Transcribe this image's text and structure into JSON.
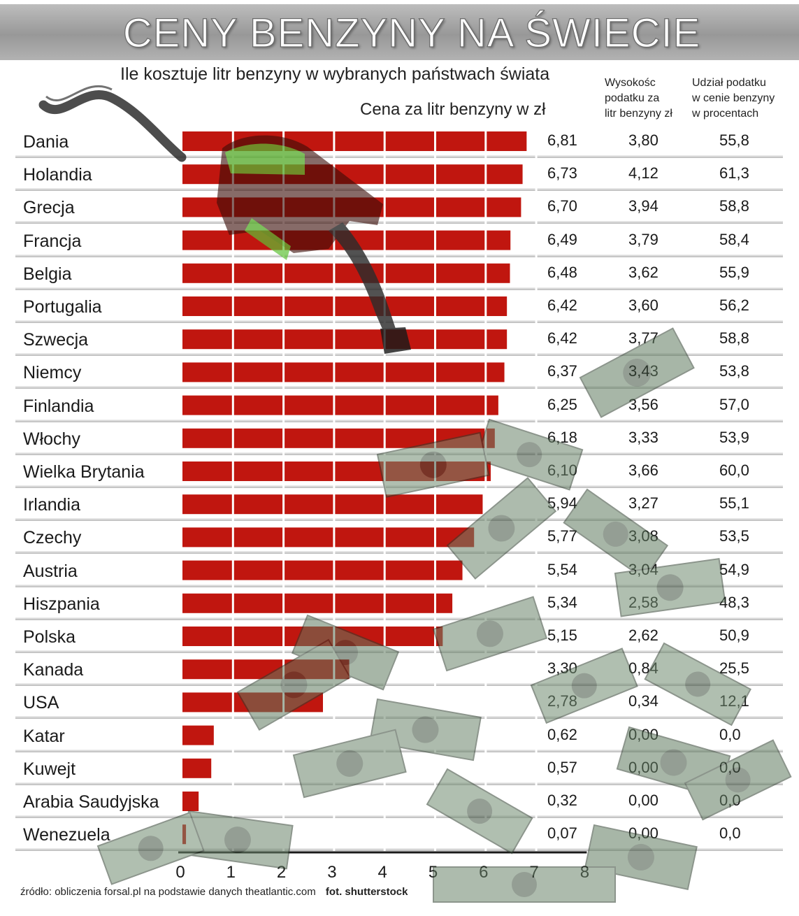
{
  "header": {
    "title": "CENY BENZYNY NA ŚWIECIE",
    "subtitle": "Ile kosztuje litr benzyny w wybranych państwach świata",
    "axis_title": "Cena za litr benzyny w zł",
    "col_tax": [
      "Wysokośc",
      "podatku za",
      "litr benzyny zł"
    ],
    "col_share": [
      "Udział podatku",
      "w cenie benzyny",
      "w procentach"
    ]
  },
  "rows": [
    {
      "country": "Dania",
      "price": "6,81",
      "tax": "3,80",
      "share": "55,8"
    },
    {
      "country": "Holandia",
      "price": "6,73",
      "tax": "4,12",
      "share": "61,3"
    },
    {
      "country": "Grecja",
      "price": "6,70",
      "tax": "3,94",
      "share": "58,8"
    },
    {
      "country": "Francja",
      "price": "6,49",
      "tax": "3,79",
      "share": "58,4"
    },
    {
      "country": "Belgia",
      "price": "6,48",
      "tax": "3,62",
      "share": "55,9"
    },
    {
      "country": "Portugalia",
      "price": "6,42",
      "tax": "3,60",
      "share": "56,2"
    },
    {
      "country": "Szwecja",
      "price": "6,42",
      "tax": "3,77",
      "share": "58,8"
    },
    {
      "country": "Niemcy",
      "price": "6,37",
      "tax": "3,43",
      "share": "53,8"
    },
    {
      "country": "Finlandia",
      "price": "6,25",
      "tax": "3,56",
      "share": "57,0"
    },
    {
      "country": "Włochy",
      "price": "6,18",
      "tax": "3,33",
      "share": "53,9"
    },
    {
      "country": "Wielka Brytania",
      "price": "6,10",
      "tax": "3,66",
      "share": "60,0"
    },
    {
      "country": "Irlandia",
      "price": "5,94",
      "tax": "3,27",
      "share": "55,1"
    },
    {
      "country": "Czechy",
      "price": "5,77",
      "tax": "3,08",
      "share": "53,5"
    },
    {
      "country": "Austria",
      "price": "5,54",
      "tax": "3,04",
      "share": "54,9"
    },
    {
      "country": "Hiszpania",
      "price": "5,34",
      "tax": "2,58",
      "share": "48,3"
    },
    {
      "country": "Polska",
      "price": "5,15",
      "tax": "2,62",
      "share": "50,9"
    },
    {
      "country": "Kanada",
      "price": "3,30",
      "tax": "0,84",
      "share": "25,5"
    },
    {
      "country": "USA",
      "price": "2,78",
      "tax": "0,34",
      "share": "12,1"
    },
    {
      "country": "Katar",
      "price": "0,62",
      "tax": "0,00",
      "share": "0,0"
    },
    {
      "country": "Kuwejt",
      "price": "0,57",
      "tax": "0,00",
      "share": "0,0"
    },
    {
      "country": "Arabia Saudyjska",
      "price": "0,32",
      "tax": "0,00",
      "share": "0,0"
    },
    {
      "country": "Wenezuela",
      "price": "0,07",
      "tax": "0,00",
      "share": "0,0"
    }
  ],
  "chart_data": {
    "type": "bar",
    "orientation": "horizontal",
    "title": "CENY BENZYNY NA ŚWIECIE",
    "subtitle": "Ile kosztuje litr benzyny w wybranych państwach świata",
    "xlabel": "Cena za litr benzyny w zł",
    "ylabel": "",
    "categories": [
      "Dania",
      "Holandia",
      "Grecja",
      "Francja",
      "Belgia",
      "Portugalia",
      "Szwecja",
      "Niemcy",
      "Finlandia",
      "Włochy",
      "Wielka Brytania",
      "Irlandia",
      "Czechy",
      "Austria",
      "Hiszpania",
      "Polska",
      "Kanada",
      "USA",
      "Katar",
      "Kuwejt",
      "Arabia Saudyjska",
      "Wenezuela"
    ],
    "values": [
      6.81,
      6.73,
      6.7,
      6.49,
      6.48,
      6.42,
      6.42,
      6.37,
      6.25,
      6.18,
      6.1,
      5.94,
      5.77,
      5.54,
      5.34,
      5.15,
      3.3,
      2.78,
      0.62,
      0.57,
      0.32,
      0.07
    ],
    "xlim": [
      0,
      8
    ],
    "xticks": [
      "0",
      "1",
      "2",
      "3",
      "4",
      "5",
      "6",
      "7",
      "8"
    ],
    "grid": true,
    "bar_color": "#c0160f"
  },
  "footer": {
    "source": "źródło: obliczenia forsal.pl na podstawie danych theatlantic.com",
    "credit": "fot. shutterstock"
  },
  "icons": {
    "nozzle": "fuel-nozzle-icon",
    "money": "banknote-icon"
  }
}
